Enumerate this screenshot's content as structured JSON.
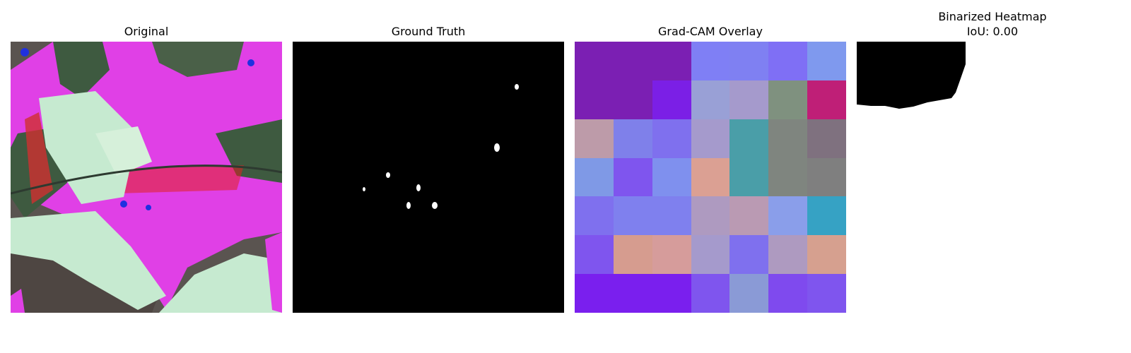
{
  "panels": [
    {
      "title": "Original"
    },
    {
      "title": "Ground Truth"
    },
    {
      "title": "Grad-CAM Overlay"
    },
    {
      "title_line1": "Binarized Heatmap",
      "title_line2": "IoU: 0.00"
    }
  ],
  "colors": {
    "magenta": "#e040e6",
    "pale_green": "#c6ead0",
    "dark_green": "#3e5a40",
    "red": "#e02020",
    "dark_bg": "#5a5450"
  },
  "overlay_grid": [
    [
      "#7b1fb3",
      "#7b1fb3",
      "#7b1fb3",
      "#7f7ff5",
      "#7f80f2",
      "#7f6ff5",
      "#7f99ee"
    ],
    [
      "#7b1fb3",
      "#7b1fb3",
      "#7b1fe6",
      "#99a0d6",
      "#a59acc",
      "#7f917f",
      "#bf1f77"
    ],
    [
      "#bd9ba9",
      "#7f80ea",
      "#7f70ee",
      "#a59acc",
      "#4a9ea8",
      "#7f857f",
      "#7f717f"
    ],
    [
      "#7f99e6",
      "#7f55ee",
      "#7f90ee",
      "#dba093",
      "#4a9ea8",
      "#7f857f",
      "#7f7f7f"
    ],
    [
      "#7f70ee",
      "#7f80ee",
      "#7f80ee",
      "#ae9ac0",
      "#ba9ab3",
      "#8a9eea",
      "#36a2c4"
    ],
    [
      "#7f55ee",
      "#d69c8f",
      "#d69c9b",
      "#a59acc",
      "#7f70ee",
      "#ae9ac0",
      "#d6a08f"
    ],
    [
      "#7a1fee",
      "#7a1fee",
      "#7a1fee",
      "#7f55ee",
      "#8a9ad6",
      "#7f4aee",
      "#7f55ee"
    ]
  ]
}
